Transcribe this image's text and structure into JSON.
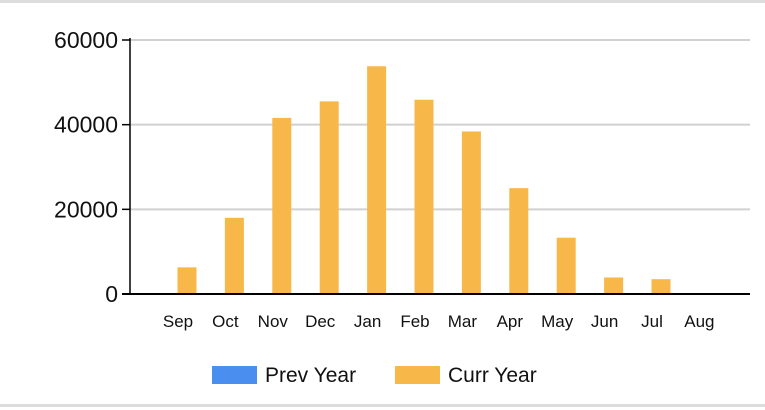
{
  "chart_data": {
    "type": "bar",
    "title": "",
    "xlabel": "",
    "ylabel": "",
    "categories": [
      "Sep",
      "Oct",
      "Nov",
      "Dec",
      "Jan",
      "Feb",
      "Mar",
      "Apr",
      "May",
      "Jun",
      "Jul",
      "Aug"
    ],
    "series": [
      {
        "name": "Prev Year",
        "color": "#4a8ff0",
        "values": [
          0,
          0,
          0,
          0,
          0,
          0,
          0,
          0,
          0,
          0,
          0,
          0
        ]
      },
      {
        "name": "Curr Year",
        "color": "#f8b849",
        "values": [
          6300,
          18000,
          41600,
          45500,
          53800,
          45900,
          38400,
          25000,
          13300,
          3900,
          3500,
          0
        ]
      }
    ],
    "ylim": [
      0,
      60000
    ],
    "yticks": [
      "0",
      "20000",
      "40000",
      "60000"
    ],
    "grid": "horizontal",
    "legend_position": "bottom"
  }
}
